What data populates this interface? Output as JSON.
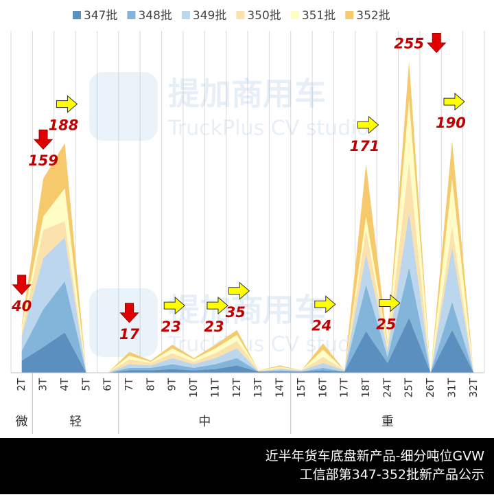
{
  "chart_data": {
    "type": "stacked-area",
    "categories": [
      "2T",
      "3T",
      "4T",
      "5T",
      "6T",
      "7T",
      "8T",
      "9T",
      "10T",
      "11T",
      "12T",
      "13T",
      "14T",
      "15T",
      "16T",
      "17T",
      "18T",
      "24T",
      "25T",
      "26T",
      "31T",
      "32T"
    ],
    "series": [
      {
        "name": "347批",
        "color": "#5b8fc0",
        "values": [
          10,
          21,
          33,
          0,
          0,
          2,
          2,
          3,
          2,
          3,
          6,
          1,
          1,
          1,
          2,
          1,
          34,
          8,
          45,
          0,
          35,
          0
        ]
      },
      {
        "name": "348批",
        "color": "#82b5d9",
        "values": [
          8,
          31,
          42,
          0,
          0,
          2,
          2,
          4,
          2,
          4,
          6,
          0,
          1,
          0,
          2,
          0,
          38,
          5,
          41,
          0,
          23,
          0
        ]
      },
      {
        "name": "349批",
        "color": "#bcd6ee",
        "values": [
          12,
          42,
          36,
          0,
          0,
          3,
          2,
          5,
          3,
          5,
          8,
          0,
          1,
          1,
          4,
          1,
          25,
          5,
          45,
          0,
          45,
          0
        ]
      },
      {
        "name": "350批",
        "color": "#fbe1ab",
        "values": [
          4,
          23,
          13,
          0,
          0,
          4,
          2,
          4,
          2,
          4,
          6,
          1,
          1,
          0,
          5,
          0,
          20,
          3,
          42,
          0,
          17,
          0
        ]
      },
      {
        "name": "351批",
        "color": "#fffcc6",
        "values": [
          4,
          11,
          27,
          0,
          0,
          3,
          1,
          4,
          2,
          4,
          5,
          0,
          1,
          0,
          6,
          0,
          11,
          2,
          51,
          0,
          39,
          0
        ]
      },
      {
        "name": "352批",
        "color": "#f6c96c",
        "values": [
          2,
          31,
          37,
          0,
          0,
          3,
          1,
          3,
          1,
          3,
          4,
          0,
          1,
          0,
          5,
          0,
          43,
          2,
          31,
          0,
          31,
          0
        ]
      }
    ],
    "ylim": [
      0,
      280
    ],
    "grid": "vertical",
    "annotations": [
      {
        "category": "2T",
        "value": 40,
        "arrow": "down"
      },
      {
        "category": "3T",
        "value": 159,
        "arrow": "down"
      },
      {
        "category": "4T",
        "value": 188,
        "arrow": "right"
      },
      {
        "category": "7T",
        "value": 17,
        "arrow": "down"
      },
      {
        "category": "9T",
        "value": 23,
        "arrow": "right"
      },
      {
        "category": "11T",
        "value": 23,
        "arrow": "right"
      },
      {
        "category": "12T",
        "value": 35,
        "arrow": "right"
      },
      {
        "category": "16T",
        "value": 24,
        "arrow": "right"
      },
      {
        "category": "18T",
        "value": 171,
        "arrow": "right"
      },
      {
        "category": "24T",
        "value": 25,
        "arrow": "right"
      },
      {
        "category": "25T",
        "value": 255,
        "arrow": "down"
      },
      {
        "category": "31T",
        "value": 190,
        "arrow": "right"
      }
    ],
    "groups": [
      {
        "label": "微",
        "start": "2T",
        "end": "2T"
      },
      {
        "label": "轻",
        "start": "3T",
        "end": "6T"
      },
      {
        "label": "中",
        "start": "7T",
        "end": "14T"
      },
      {
        "label": "重",
        "start": "15T",
        "end": "32T"
      }
    ],
    "watermark": {
      "brand": "提加商用车",
      "sub": "TruckPlus CV studio"
    },
    "footer": [
      "近半年货车底盘新产品-细分吨位GVW",
      "工信部第347-352批新产品公示"
    ]
  }
}
